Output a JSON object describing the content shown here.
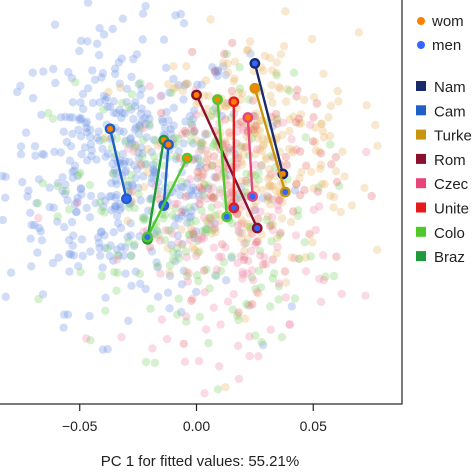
{
  "chart_data": {
    "type": "scatter",
    "title": "",
    "xlabel": "PC 1 for fitted values: 55.21%",
    "ylabel": "",
    "xlim": [
      -0.085,
      0.088
    ],
    "ylim": [
      -0.09,
      0.09
    ],
    "x_ticks": [
      -0.05,
      0.0,
      0.05
    ],
    "x_tick_labels": [
      "−0.05",
      "0.00",
      "0.05"
    ],
    "grid": false,
    "legend_position": "right (partly cut off)",
    "sex_legend": [
      {
        "label": "wom",
        "color": "#ff7f00"
      },
      {
        "label": "men",
        "color": "#3366ff"
      }
    ],
    "country_legend": [
      {
        "label": "Nam",
        "color": "#1b2a6b"
      },
      {
        "label": "Cam",
        "color": "#1f5fc8"
      },
      {
        "label": "Turke",
        "color": "#c9950f"
      },
      {
        "label": "Rom",
        "color": "#8b1030"
      },
      {
        "label": "Czec",
        "color": "#e8457a"
      },
      {
        "label": "Unite",
        "color": "#e41a1c"
      },
      {
        "label": "Colo",
        "color": "#4fc82a"
      },
      {
        "label": "Braz",
        "color": "#1f9a3a"
      }
    ],
    "country_means": [
      {
        "country": "Nam",
        "color": "#1b2a6b",
        "women": [
          0.037,
          0.012
        ],
        "men": [
          0.025,
          0.061
        ]
      },
      {
        "country": "Cam",
        "color": "#1f5fc8",
        "women": [
          -0.037,
          0.032
        ],
        "men": [
          -0.03,
          0.001
        ]
      },
      {
        "country": "Turke",
        "color": "#c9950f",
        "women": [
          0.025,
          0.05
        ],
        "men": [
          0.038,
          0.004
        ]
      },
      {
        "country": "Rom",
        "color": "#8b1030",
        "women": [
          0.0,
          0.047
        ],
        "men": [
          0.026,
          -0.012
        ]
      },
      {
        "country": "Czec",
        "color": "#e8457a",
        "women": [
          0.022,
          0.037
        ],
        "men": [
          0.024,
          0.002
        ]
      },
      {
        "country": "Unite",
        "color": "#e41a1c",
        "women": [
          0.016,
          0.044
        ],
        "men": [
          0.016,
          -0.003
        ]
      },
      {
        "country": "Colo",
        "color": "#4fc82a",
        "women": [
          0.009,
          0.045
        ],
        "men": [
          0.013,
          -0.007
        ]
      },
      {
        "country": "Braz",
        "color": "#1f9a3a",
        "women": [
          -0.014,
          0.027
        ],
        "men": [
          -0.021,
          -0.017
        ]
      },
      {
        "country": "Cam",
        "color": "#1f5fc8",
        "women": [
          -0.012,
          0.025
        ],
        "men": [
          -0.014,
          -0.002
        ]
      },
      {
        "country": "Colo",
        "color": "#4fc82a",
        "women": [
          -0.004,
          0.019
        ],
        "men": [
          -0.021,
          -0.016
        ]
      }
    ],
    "point_cloud": {
      "count": 1200,
      "clusters": [
        {
          "name": "men",
          "color": "#6f95e6",
          "center": [
            -0.03,
            0.013
          ],
          "spread": [
            0.026,
            0.03
          ],
          "share": 0.38
        },
        {
          "name": "women",
          "color": "#e8b96a",
          "center": [
            0.025,
            0.022
          ],
          "spread": [
            0.022,
            0.026
          ],
          "share": 0.22
        },
        {
          "name": "green",
          "color": "#7fd36a",
          "center": [
            -0.005,
            -0.005
          ],
          "spread": [
            0.028,
            0.03
          ],
          "share": 0.18
        },
        {
          "name": "pink",
          "color": "#ef8fae",
          "center": [
            0.015,
            -0.012
          ],
          "spread": [
            0.022,
            0.028
          ],
          "share": 0.14
        },
        {
          "name": "red",
          "color": "#e46a6a",
          "center": [
            0.02,
            0.01
          ],
          "spread": [
            0.02,
            0.025
          ],
          "share": 0.08
        }
      ],
      "opacity": 0.32
    }
  }
}
